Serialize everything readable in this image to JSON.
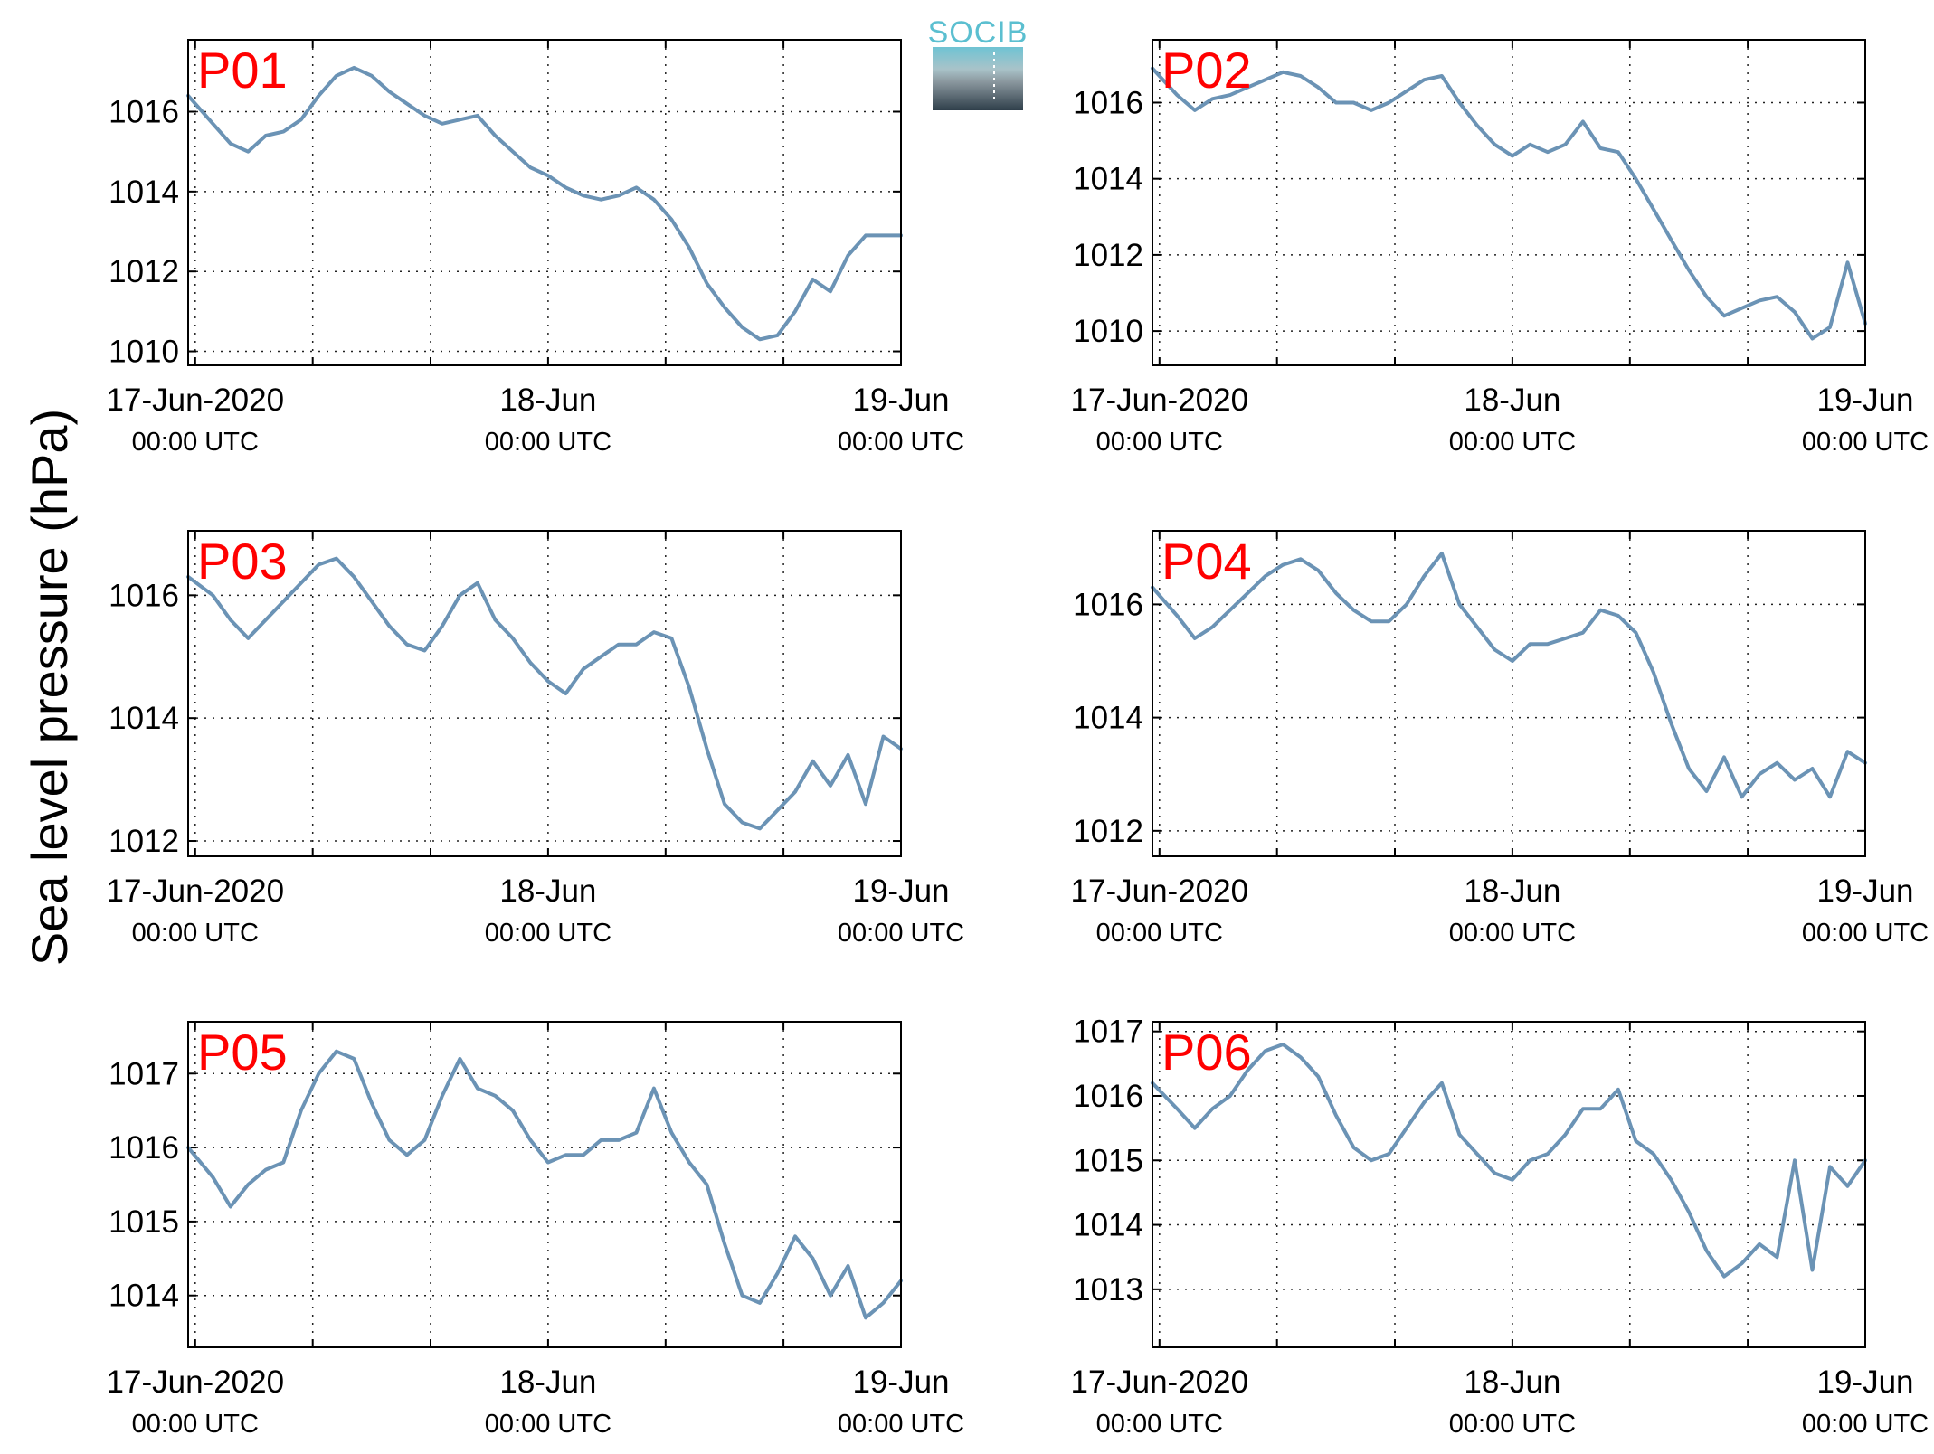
{
  "figure": {
    "ylabel": "Sea level pressure (hPa)",
    "logo_text": "SOCIB"
  },
  "colors": {
    "line": "#6b93b5",
    "panel_label": "#ff0000",
    "axis": "#000000",
    "logo_top": "#6fc3d3",
    "logo_bottom": "#2f3f4a"
  },
  "chart_data": [
    {
      "type": "line",
      "panel": "P01",
      "title": "P01",
      "grid": true,
      "xlim": [
        -0.02,
        2.0
      ],
      "ylim": [
        1009.65,
        1017.8
      ],
      "yticks": [
        1010,
        1012,
        1014,
        1016
      ],
      "x_ticks": [
        {
          "x": 0,
          "label": "17-Jun-2020",
          "sub": "00:00 UTC"
        },
        {
          "x": 1,
          "label": "18-Jun",
          "sub": "00:00 UTC"
        },
        {
          "x": 2,
          "label": "19-Jun",
          "sub": "00:00 UTC"
        }
      ],
      "x": [
        -0.02,
        0.05,
        0.1,
        0.15,
        0.2,
        0.25,
        0.3,
        0.35,
        0.4,
        0.45,
        0.5,
        0.55,
        0.6,
        0.65,
        0.7,
        0.75,
        0.8,
        0.85,
        0.9,
        0.95,
        1.0,
        1.05,
        1.1,
        1.15,
        1.2,
        1.25,
        1.3,
        1.35,
        1.4,
        1.45,
        1.5,
        1.55,
        1.6,
        1.65,
        1.7,
        1.75,
        1.8,
        1.85,
        1.9,
        1.95,
        2.0
      ],
      "values": [
        1016.4,
        1015.7,
        1015.2,
        1015.0,
        1015.4,
        1015.5,
        1015.8,
        1016.4,
        1016.9,
        1017.1,
        1016.9,
        1016.5,
        1016.2,
        1015.9,
        1015.7,
        1015.8,
        1015.9,
        1015.4,
        1015.0,
        1014.6,
        1014.4,
        1014.1,
        1013.9,
        1013.8,
        1013.9,
        1014.1,
        1013.8,
        1013.3,
        1012.6,
        1011.7,
        1011.1,
        1010.6,
        1010.3,
        1010.4,
        1011.0,
        1011.8,
        1011.5,
        1012.4,
        1012.9,
        1012.9,
        1012.9
      ]
    },
    {
      "type": "line",
      "panel": "P02",
      "title": "P02",
      "grid": true,
      "xlim": [
        -0.02,
        2.0
      ],
      "ylim": [
        1009.1,
        1017.65
      ],
      "yticks": [
        1010,
        1012,
        1014,
        1016
      ],
      "x_ticks": [
        {
          "x": 0,
          "label": "17-Jun-2020",
          "sub": "00:00 UTC"
        },
        {
          "x": 1,
          "label": "18-Jun",
          "sub": "00:00 UTC"
        },
        {
          "x": 2,
          "label": "19-Jun",
          "sub": "00:00 UTC"
        }
      ],
      "x": [
        -0.02,
        0.05,
        0.1,
        0.15,
        0.2,
        0.25,
        0.3,
        0.35,
        0.4,
        0.45,
        0.5,
        0.55,
        0.6,
        0.65,
        0.7,
        0.75,
        0.8,
        0.85,
        0.9,
        0.95,
        1.0,
        1.05,
        1.1,
        1.15,
        1.2,
        1.25,
        1.3,
        1.35,
        1.4,
        1.45,
        1.5,
        1.55,
        1.6,
        1.65,
        1.7,
        1.75,
        1.8,
        1.85,
        1.9,
        1.95,
        2.0
      ],
      "values": [
        1016.9,
        1016.2,
        1015.8,
        1016.1,
        1016.2,
        1016.4,
        1016.6,
        1016.8,
        1016.7,
        1016.4,
        1016.0,
        1016.0,
        1015.8,
        1016.0,
        1016.3,
        1016.6,
        1016.7,
        1016.0,
        1015.4,
        1014.9,
        1014.6,
        1014.9,
        1014.7,
        1014.9,
        1015.5,
        1014.8,
        1014.7,
        1014.0,
        1013.2,
        1012.4,
        1011.6,
        1010.9,
        1010.4,
        1010.6,
        1010.8,
        1010.9,
        1010.5,
        1009.8,
        1010.1,
        1011.8,
        1010.2
      ]
    },
    {
      "type": "line",
      "panel": "P03",
      "title": "P03",
      "grid": true,
      "xlim": [
        -0.02,
        2.0
      ],
      "ylim": [
        1011.75,
        1017.05
      ],
      "yticks": [
        1012,
        1014,
        1016
      ],
      "x_ticks": [
        {
          "x": 0,
          "label": "17-Jun-2020",
          "sub": "00:00 UTC"
        },
        {
          "x": 1,
          "label": "18-Jun",
          "sub": "00:00 UTC"
        },
        {
          "x": 2,
          "label": "19-Jun",
          "sub": "00:00 UTC"
        }
      ],
      "x": [
        -0.02,
        0.05,
        0.1,
        0.15,
        0.2,
        0.25,
        0.3,
        0.35,
        0.4,
        0.45,
        0.5,
        0.55,
        0.6,
        0.65,
        0.7,
        0.75,
        0.8,
        0.85,
        0.9,
        0.95,
        1.0,
        1.05,
        1.1,
        1.15,
        1.2,
        1.25,
        1.3,
        1.35,
        1.4,
        1.45,
        1.5,
        1.55,
        1.6,
        1.65,
        1.7,
        1.75,
        1.8,
        1.85,
        1.9,
        1.95,
        2.0
      ],
      "values": [
        1016.3,
        1016.0,
        1015.6,
        1015.3,
        1015.6,
        1015.9,
        1016.2,
        1016.5,
        1016.6,
        1016.3,
        1015.9,
        1015.5,
        1015.2,
        1015.1,
        1015.5,
        1016.0,
        1016.2,
        1015.6,
        1015.3,
        1014.9,
        1014.6,
        1014.4,
        1014.8,
        1015.0,
        1015.2,
        1015.2,
        1015.4,
        1015.3,
        1014.5,
        1013.5,
        1012.6,
        1012.3,
        1012.2,
        1012.5,
        1012.8,
        1013.3,
        1012.9,
        1013.4,
        1012.6,
        1013.7,
        1013.5
      ]
    },
    {
      "type": "line",
      "panel": "P04",
      "title": "P04",
      "grid": true,
      "xlim": [
        -0.02,
        2.0
      ],
      "ylim": [
        1011.55,
        1017.3
      ],
      "yticks": [
        1012,
        1014,
        1016
      ],
      "x_ticks": [
        {
          "x": 0,
          "label": "17-Jun-2020",
          "sub": "00:00 UTC"
        },
        {
          "x": 1,
          "label": "18-Jun",
          "sub": "00:00 UTC"
        },
        {
          "x": 2,
          "label": "19-Jun",
          "sub": "00:00 UTC"
        }
      ],
      "x": [
        -0.02,
        0.05,
        0.1,
        0.15,
        0.2,
        0.25,
        0.3,
        0.35,
        0.4,
        0.45,
        0.5,
        0.55,
        0.6,
        0.65,
        0.7,
        0.75,
        0.8,
        0.85,
        0.9,
        0.95,
        1.0,
        1.05,
        1.1,
        1.15,
        1.2,
        1.25,
        1.3,
        1.35,
        1.4,
        1.45,
        1.5,
        1.55,
        1.6,
        1.65,
        1.7,
        1.75,
        1.8,
        1.85,
        1.9,
        1.95,
        2.0
      ],
      "values": [
        1016.3,
        1015.8,
        1015.4,
        1015.6,
        1015.9,
        1016.2,
        1016.5,
        1016.7,
        1016.8,
        1016.6,
        1016.2,
        1015.9,
        1015.7,
        1015.7,
        1016.0,
        1016.5,
        1016.9,
        1016.0,
        1015.6,
        1015.2,
        1015.0,
        1015.3,
        1015.3,
        1015.4,
        1015.5,
        1015.9,
        1015.8,
        1015.5,
        1014.8,
        1013.9,
        1013.1,
        1012.7,
        1013.3,
        1012.6,
        1013.0,
        1013.2,
        1012.9,
        1013.1,
        1012.6,
        1013.4,
        1013.2
      ]
    },
    {
      "type": "line",
      "panel": "P05",
      "title": "P05",
      "grid": true,
      "xlim": [
        -0.02,
        2.0
      ],
      "ylim": [
        1013.3,
        1017.7
      ],
      "yticks": [
        1014,
        1015,
        1016,
        1017
      ],
      "x_ticks": [
        {
          "x": 0,
          "label": "17-Jun-2020",
          "sub": "00:00 UTC"
        },
        {
          "x": 1,
          "label": "18-Jun",
          "sub": "00:00 UTC"
        },
        {
          "x": 2,
          "label": "19-Jun",
          "sub": "00:00 UTC"
        }
      ],
      "x": [
        -0.02,
        0.05,
        0.1,
        0.15,
        0.2,
        0.25,
        0.3,
        0.35,
        0.4,
        0.45,
        0.5,
        0.55,
        0.6,
        0.65,
        0.7,
        0.75,
        0.8,
        0.85,
        0.9,
        0.95,
        1.0,
        1.05,
        1.1,
        1.15,
        1.2,
        1.25,
        1.3,
        1.35,
        1.4,
        1.45,
        1.5,
        1.55,
        1.6,
        1.65,
        1.7,
        1.75,
        1.8,
        1.85,
        1.9,
        1.95,
        2.0
      ],
      "values": [
        1016.0,
        1015.6,
        1015.2,
        1015.5,
        1015.7,
        1015.8,
        1016.5,
        1017.0,
        1017.3,
        1017.2,
        1016.6,
        1016.1,
        1015.9,
        1016.1,
        1016.7,
        1017.2,
        1016.8,
        1016.7,
        1016.5,
        1016.1,
        1015.8,
        1015.9,
        1015.9,
        1016.1,
        1016.1,
        1016.2,
        1016.8,
        1016.2,
        1015.8,
        1015.5,
        1014.7,
        1014.0,
        1013.9,
        1014.3,
        1014.8,
        1014.5,
        1014.0,
        1014.4,
        1013.7,
        1013.9,
        1014.2
      ]
    },
    {
      "type": "line",
      "panel": "P06",
      "title": "P06",
      "grid": true,
      "xlim": [
        -0.02,
        2.0
      ],
      "ylim": [
        1012.1,
        1017.15
      ],
      "yticks": [
        1013,
        1014,
        1015,
        1016,
        1017
      ],
      "x_ticks": [
        {
          "x": 0,
          "label": "17-Jun-2020",
          "sub": "00:00 UTC"
        },
        {
          "x": 1,
          "label": "18-Jun",
          "sub": "00:00 UTC"
        },
        {
          "x": 2,
          "label": "19-Jun",
          "sub": "00:00 UTC"
        }
      ],
      "x": [
        -0.02,
        0.05,
        0.1,
        0.15,
        0.2,
        0.25,
        0.3,
        0.35,
        0.4,
        0.45,
        0.5,
        0.55,
        0.6,
        0.65,
        0.7,
        0.75,
        0.8,
        0.85,
        0.9,
        0.95,
        1.0,
        1.05,
        1.1,
        1.15,
        1.2,
        1.25,
        1.3,
        1.35,
        1.4,
        1.45,
        1.5,
        1.55,
        1.6,
        1.65,
        1.7,
        1.75,
        1.8,
        1.85,
        1.9,
        1.95,
        2.0
      ],
      "values": [
        1016.2,
        1015.8,
        1015.5,
        1015.8,
        1016.0,
        1016.4,
        1016.7,
        1016.8,
        1016.6,
        1016.3,
        1015.7,
        1015.2,
        1015.0,
        1015.1,
        1015.5,
        1015.9,
        1016.2,
        1015.4,
        1015.1,
        1014.8,
        1014.7,
        1015.0,
        1015.1,
        1015.4,
        1015.8,
        1015.8,
        1016.1,
        1015.3,
        1015.1,
        1014.7,
        1014.2,
        1013.6,
        1013.2,
        1013.4,
        1013.7,
        1013.5,
        1015.0,
        1013.3,
        1014.9,
        1014.6,
        1015.0
      ]
    }
  ]
}
